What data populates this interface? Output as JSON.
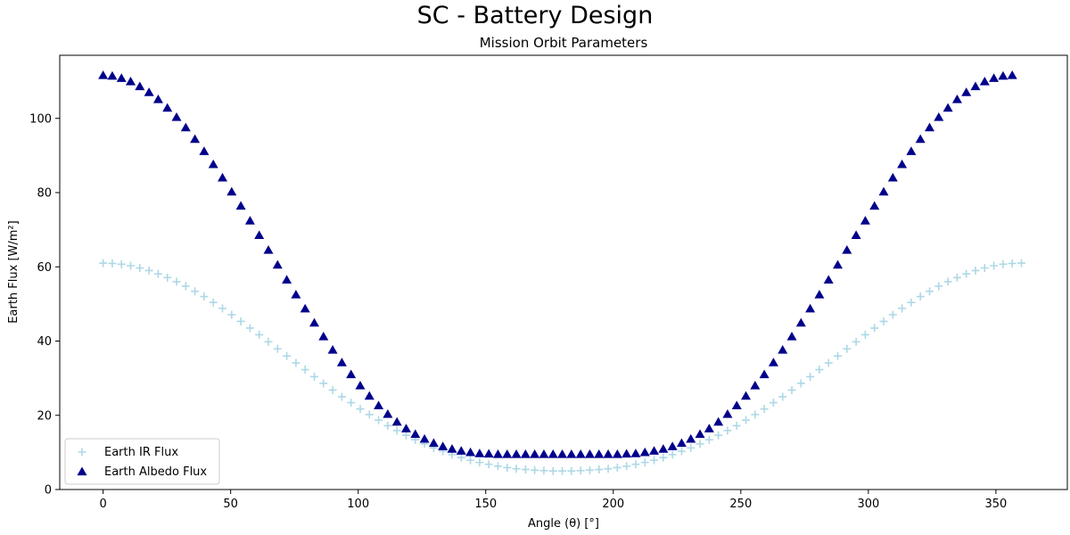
{
  "page": {
    "suptitle": "SC - Battery Design"
  },
  "chart_data": {
    "type": "scatter",
    "title": "Mission Orbit Parameters",
    "xlabel": "Angle (θ) [°]",
    "ylabel": "Earth Flux [W/m²]",
    "xlim": [
      -17,
      378
    ],
    "ylim": [
      0,
      117
    ],
    "xticks": [
      0,
      50,
      100,
      150,
      200,
      250,
      300,
      350
    ],
    "yticks": [
      0,
      20,
      40,
      60,
      80,
      100
    ],
    "grid": false,
    "legend_position": "lower-left",
    "x_step_deg": 3.6,
    "series": [
      {
        "name": "Earth IR Flux",
        "marker": "plus",
        "color": "#add8e6",
        "values": [
          61.0,
          60.9,
          60.7,
          60.3,
          59.7,
          59.0,
          58.1,
          57.1,
          56.0,
          54.8,
          53.4,
          52.0,
          50.4,
          48.8,
          47.1,
          45.3,
          43.5,
          41.7,
          39.8,
          37.9,
          36.0,
          34.1,
          32.3,
          30.4,
          28.6,
          26.8,
          25.0,
          23.4,
          21.7,
          20.2,
          18.7,
          17.2,
          15.9,
          14.6,
          13.4,
          12.3,
          11.2,
          10.3,
          9.4,
          8.6,
          7.9,
          7.3,
          6.8,
          6.3,
          5.9,
          5.6,
          5.4,
          5.2,
          5.1,
          5.0,
          5.0,
          5.0,
          5.1,
          5.2,
          5.4,
          5.6,
          5.9,
          6.3,
          6.8,
          7.3,
          7.9,
          8.6,
          9.4,
          10.3,
          11.2,
          12.3,
          13.4,
          14.6,
          15.9,
          17.2,
          18.7,
          20.2,
          21.7,
          23.4,
          25.0,
          26.8,
          28.6,
          30.4,
          32.3,
          34.1,
          36.0,
          37.9,
          39.8,
          41.7,
          43.5,
          45.3,
          47.1,
          48.8,
          50.4,
          52.0,
          53.4,
          54.8,
          56.0,
          57.1,
          58.1,
          59.0,
          59.7,
          60.3,
          60.7,
          60.9,
          61.0
        ]
      },
      {
        "name": "Earth Albedo Flux",
        "marker": "triangle-up",
        "color": "#00008b",
        "values": [
          111.6,
          111.4,
          110.8,
          109.9,
          108.6,
          107.0,
          105.1,
          102.8,
          100.3,
          97.5,
          94.4,
          91.1,
          87.6,
          84.0,
          80.2,
          76.4,
          72.4,
          68.5,
          64.5,
          60.5,
          56.5,
          52.5,
          48.7,
          44.9,
          41.2,
          37.6,
          34.2,
          31.0,
          28.0,
          25.2,
          22.6,
          20.3,
          18.2,
          16.4,
          14.9,
          13.6,
          12.5,
          11.6,
          10.9,
          10.4,
          10.0,
          9.7,
          9.6,
          9.5,
          9.5,
          9.5,
          9.5,
          9.5,
          9.5,
          9.5,
          9.5,
          9.5,
          9.5,
          9.5,
          9.5,
          9.5,
          9.5,
          9.6,
          9.7,
          10.0,
          10.4,
          10.9,
          11.6,
          12.5,
          13.6,
          14.9,
          16.4,
          18.2,
          20.3,
          22.6,
          25.2,
          28.0,
          31.0,
          34.2,
          37.6,
          41.2,
          44.9,
          48.7,
          52.5,
          56.5,
          60.5,
          64.5,
          68.5,
          72.4,
          76.4,
          80.2,
          84.0,
          87.6,
          91.1,
          94.4,
          97.5,
          100.3,
          102.8,
          105.1,
          107.0,
          108.6,
          109.9,
          110.8,
          111.4,
          111.6
        ]
      }
    ]
  }
}
